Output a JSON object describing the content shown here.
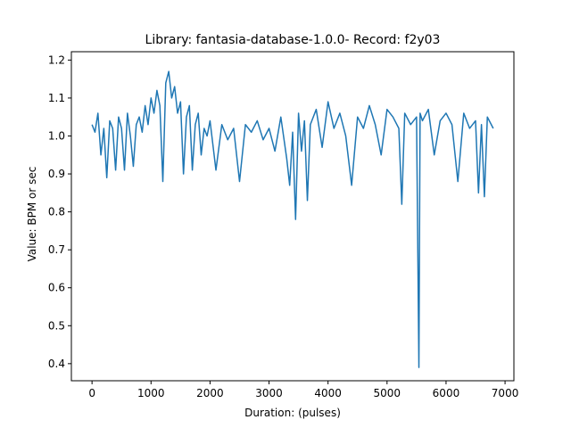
{
  "chart_data": {
    "type": "line",
    "title": "Library: fantasia-database-1.0.0- Record: f2y03",
    "xlabel": "Duration: (pulses)",
    "ylabel": "Value: BPM or sec",
    "xlim": [
      -350,
      7150
    ],
    "ylim": [
      0.355,
      1.222
    ],
    "xticks": [
      0,
      1000,
      2000,
      3000,
      4000,
      5000,
      6000,
      7000
    ],
    "yticks": [
      0.4,
      0.5,
      0.6,
      0.7,
      0.8,
      0.9,
      1.0,
      1.1,
      1.2
    ],
    "xtick_labels": [
      "0",
      "1000",
      "2000",
      "3000",
      "4000",
      "5000",
      "6000",
      "7000"
    ],
    "ytick_labels": [
      "0.4",
      "0.5",
      "0.6",
      "0.7",
      "0.8",
      "0.9",
      "1.0",
      "1.1",
      "1.2"
    ],
    "grid": false,
    "series": [
      {
        "color": "#1f77b4",
        "x": [
          0,
          50,
          100,
          150,
          200,
          250,
          300,
          350,
          400,
          450,
          500,
          550,
          600,
          650,
          700,
          750,
          800,
          850,
          900,
          950,
          1000,
          1050,
          1100,
          1150,
          1200,
          1250,
          1300,
          1350,
          1400,
          1450,
          1500,
          1550,
          1600,
          1650,
          1700,
          1750,
          1800,
          1850,
          1900,
          1950,
          2000,
          2100,
          2200,
          2300,
          2400,
          2500,
          2600,
          2700,
          2800,
          2900,
          3000,
          3100,
          3200,
          3300,
          3350,
          3400,
          3450,
          3500,
          3550,
          3600,
          3650,
          3700,
          3800,
          3900,
          4000,
          4100,
          4200,
          4300,
          4400,
          4500,
          4600,
          4700,
          4800,
          4900,
          5000,
          5100,
          5200,
          5250,
          5300,
          5400,
          5500,
          5540,
          5560,
          5600,
          5700,
          5800,
          5900,
          6000,
          6100,
          6200,
          6300,
          6400,
          6500,
          6550,
          6600,
          6650,
          6700,
          6800
        ],
        "y": [
          1.03,
          1.01,
          1.06,
          0.95,
          1.02,
          0.89,
          1.04,
          1.02,
          0.91,
          1.05,
          1.02,
          0.91,
          1.06,
          1.0,
          0.92,
          1.03,
          1.05,
          1.01,
          1.08,
          1.03,
          1.1,
          1.06,
          1.12,
          1.08,
          0.88,
          1.14,
          1.17,
          1.1,
          1.13,
          1.06,
          1.09,
          0.9,
          1.05,
          1.08,
          0.91,
          1.03,
          1.06,
          0.95,
          1.02,
          1.0,
          1.04,
          0.91,
          1.03,
          0.99,
          1.02,
          0.88,
          1.03,
          1.01,
          1.04,
          0.99,
          1.02,
          0.96,
          1.05,
          0.94,
          0.87,
          1.01,
          0.78,
          1.06,
          0.96,
          1.04,
          0.83,
          1.03,
          1.07,
          0.97,
          1.09,
          1.02,
          1.06,
          1.0,
          0.87,
          1.05,
          1.02,
          1.08,
          1.03,
          0.95,
          1.07,
          1.05,
          1.02,
          0.82,
          1.06,
          1.03,
          1.05,
          0.39,
          1.06,
          1.04,
          1.07,
          0.95,
          1.04,
          1.06,
          1.03,
          0.88,
          1.06,
          1.02,
          1.04,
          0.85,
          1.03,
          0.84,
          1.05,
          1.02
        ]
      }
    ]
  }
}
